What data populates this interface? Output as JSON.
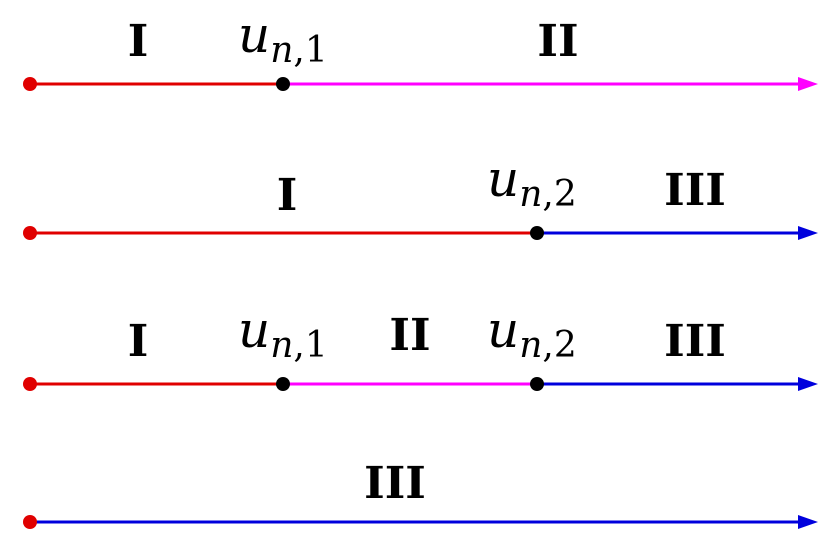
{
  "colors": {
    "region_I": "#e00000",
    "region_II": "#ff00ff",
    "region_III": "#0000dd",
    "point": "#000000"
  },
  "rows": [
    {
      "labels": {
        "left": "I",
        "right": "II"
      },
      "points": [
        {
          "var": "u",
          "sub_var": "n",
          "sub_idx": ",1"
        }
      ]
    },
    {
      "labels": {
        "left": "I",
        "right": "III"
      },
      "points": [
        {
          "var": "u",
          "sub_var": "n",
          "sub_idx": ",2"
        }
      ]
    },
    {
      "labels": {
        "left": "I",
        "middle": "II",
        "right": "III"
      },
      "points": [
        {
          "var": "u",
          "sub_var": "n",
          "sub_idx": ",1"
        },
        {
          "var": "u",
          "sub_var": "n",
          "sub_idx": ",2"
        }
      ]
    },
    {
      "labels": {
        "middle": "III"
      },
      "points": []
    }
  ]
}
